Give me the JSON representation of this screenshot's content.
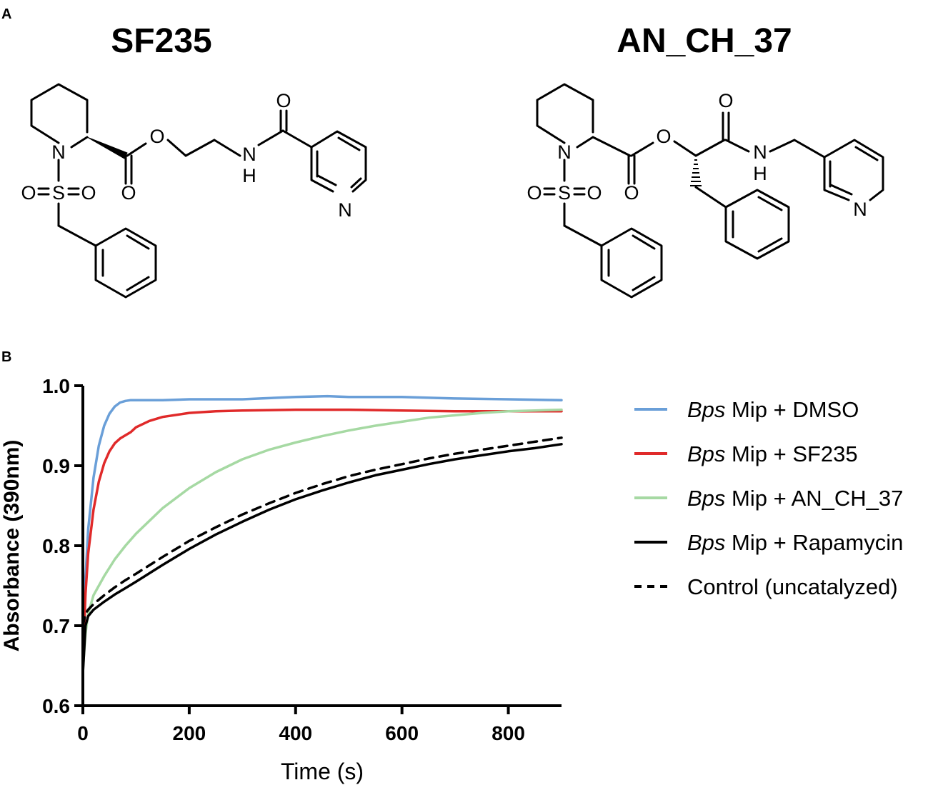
{
  "figure": {
    "panel_a_label": "A",
    "panel_b_label": "B",
    "compound_1": "SF235",
    "compound_2": "AN_CH_37"
  },
  "structure_labels": {
    "N": "N",
    "O": "O",
    "S": "S",
    "H": "H"
  },
  "chart_data": {
    "type": "line",
    "xlabel": "Time (s)",
    "ylabel": "Absorbance (390nm)",
    "xlim": [
      0,
      900
    ],
    "ylim": [
      0.6,
      1.0
    ],
    "xticks": [
      0,
      200,
      400,
      600,
      800
    ],
    "yticks": [
      0.6,
      0.7,
      0.8,
      0.9,
      1.0
    ],
    "xtick_labels": [
      "0",
      "200",
      "400",
      "600",
      "800"
    ],
    "ytick_labels": [
      "0.6",
      "0.7",
      "0.8",
      "0.9",
      "1.0"
    ],
    "grid": false,
    "legend_position": "right",
    "series": [
      {
        "name": "Bps Mip + DMSO",
        "name_italic": "Bps",
        "name_rest": " Mip + DMSO",
        "color": "#6a9fd8",
        "dash": "solid",
        "x": [
          0,
          5,
          10,
          20,
          30,
          40,
          50,
          60,
          70,
          80,
          90,
          100,
          150,
          200,
          300,
          400,
          460,
          500,
          600,
          700,
          800,
          900
        ],
        "y": [
          0.65,
          0.76,
          0.82,
          0.885,
          0.925,
          0.95,
          0.965,
          0.974,
          0.979,
          0.981,
          0.982,
          0.982,
          0.982,
          0.983,
          0.983,
          0.986,
          0.987,
          0.986,
          0.986,
          0.984,
          0.983,
          0.982
        ]
      },
      {
        "name": "Bps Mip + SF235",
        "name_italic": "Bps",
        "name_rest": " Mip + SF235",
        "color": "#e02a2a",
        "dash": "solid",
        "x": [
          0,
          5,
          10,
          20,
          30,
          40,
          50,
          60,
          70,
          80,
          90,
          100,
          125,
          150,
          200,
          250,
          300,
          400,
          500,
          600,
          700,
          800,
          900
        ],
        "y": [
          0.655,
          0.74,
          0.79,
          0.845,
          0.88,
          0.903,
          0.918,
          0.928,
          0.934,
          0.938,
          0.942,
          0.948,
          0.956,
          0.961,
          0.966,
          0.968,
          0.969,
          0.97,
          0.97,
          0.969,
          0.968,
          0.968,
          0.968
        ]
      },
      {
        "name": "Bps Mip + AN_CH_37",
        "name_italic": "Bps",
        "name_rest": " Mip + AN_CH_37",
        "color": "#a6d9a3",
        "dash": "solid",
        "x": [
          0,
          5,
          10,
          20,
          40,
          60,
          80,
          100,
          150,
          200,
          250,
          300,
          350,
          400,
          450,
          500,
          550,
          600,
          650,
          700,
          750,
          800,
          850,
          900
        ],
        "y": [
          0.645,
          0.69,
          0.715,
          0.738,
          0.762,
          0.783,
          0.8,
          0.815,
          0.847,
          0.872,
          0.892,
          0.908,
          0.92,
          0.929,
          0.937,
          0.944,
          0.95,
          0.955,
          0.96,
          0.963,
          0.966,
          0.968,
          0.969,
          0.97
        ]
      },
      {
        "name": "Bps Mip + Rapamycin",
        "name_italic": "Bps",
        "name_rest": " Mip + Rapamycin",
        "color": "#000000",
        "dash": "solid",
        "x": [
          0,
          5,
          10,
          20,
          40,
          60,
          80,
          100,
          150,
          200,
          250,
          300,
          350,
          400,
          450,
          500,
          550,
          600,
          650,
          700,
          750,
          800,
          850,
          900
        ],
        "y": [
          0.64,
          0.7,
          0.712,
          0.72,
          0.73,
          0.739,
          0.747,
          0.755,
          0.776,
          0.796,
          0.814,
          0.83,
          0.845,
          0.858,
          0.869,
          0.879,
          0.888,
          0.895,
          0.902,
          0.908,
          0.913,
          0.918,
          0.922,
          0.927
        ]
      },
      {
        "name": "Control (uncatalyzed)",
        "name_italic": "",
        "name_rest": "Control (uncatalyzed)",
        "color": "#000000",
        "dash": "dashed",
        "x": [
          0,
          5,
          10,
          20,
          40,
          60,
          80,
          100,
          150,
          200,
          250,
          300,
          350,
          400,
          450,
          500,
          550,
          600,
          650,
          700,
          750,
          800,
          850,
          900
        ],
        "y": [
          0.7,
          0.715,
          0.72,
          0.727,
          0.738,
          0.748,
          0.757,
          0.765,
          0.786,
          0.806,
          0.823,
          0.839,
          0.853,
          0.866,
          0.877,
          0.887,
          0.895,
          0.902,
          0.909,
          0.915,
          0.92,
          0.925,
          0.93,
          0.935
        ]
      }
    ]
  }
}
